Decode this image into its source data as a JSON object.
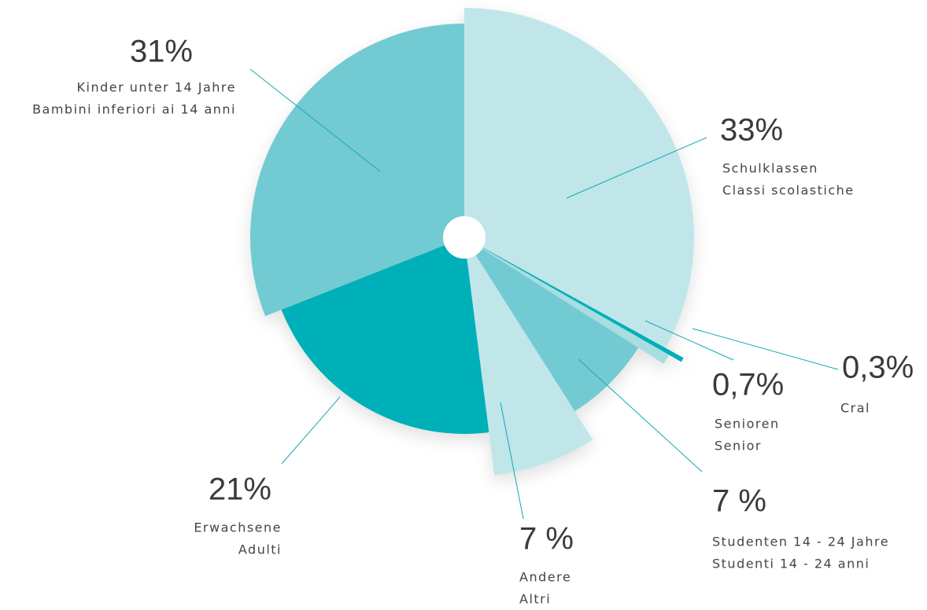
{
  "chart_data": {
    "type": "pie",
    "categories": [
      "Schulklassen",
      "Cral",
      "Senioren",
      "Studenten 14 - 24 Jahre",
      "Andere",
      "Erwachsene",
      "Kinder unter 14 Jahre"
    ],
    "categories_secondary": [
      "Classi scolastiche",
      null,
      "Senior",
      "Studenti 14 - 24 anni",
      "Altri",
      "Adulti",
      "Bambini inferiori ai 14 anni"
    ],
    "values": [
      33,
      0.3,
      0.7,
      7,
      7,
      21,
      31
    ],
    "value_labels": [
      "33%",
      "0,3%",
      "0,7%",
      "7 %",
      "7 %",
      "21%",
      "31%"
    ],
    "colors": [
      "#c0e6ea",
      "#00b0b9",
      "#a8dde2",
      "#72cbd2",
      "#c0e6ea",
      "#00b0b9",
      "#72cbd2"
    ]
  }
}
